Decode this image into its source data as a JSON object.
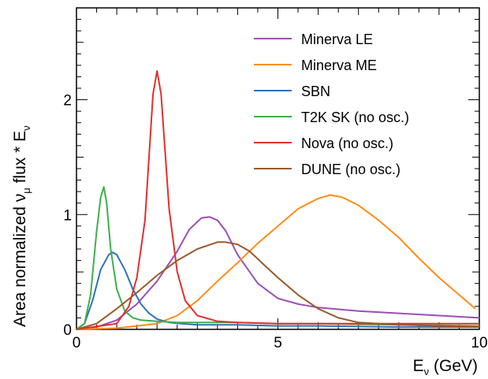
{
  "chart_data": {
    "type": "line",
    "title": "",
    "xlabel": {
      "main": "E",
      "sub": "ν",
      "rest": " (GeV)"
    },
    "ylabel": {
      "pre": "Area normalized  ν",
      "sub": "μ",
      "post": " flux * E",
      "sub2": "ν"
    },
    "xlim": [
      0,
      10
    ],
    "ylim": [
      0,
      2.8
    ],
    "xticks": [
      0,
      5,
      10
    ],
    "xtick_labels": [
      "0",
      "5",
      "10"
    ],
    "yticks": [
      0,
      1,
      2
    ],
    "ytick_labels": [
      "0",
      "1",
      "2"
    ],
    "grid": false,
    "legend_position": "top-right",
    "series": [
      {
        "name": "Minerva LE",
        "color": "#9b4fb5",
        "x": [
          0,
          0.5,
          1.0,
          1.5,
          2.0,
          2.5,
          2.8,
          3.1,
          3.3,
          3.5,
          3.7,
          4.0,
          4.5,
          5.0,
          5.5,
          6.0,
          7.0,
          8.0,
          9.0,
          10.0
        ],
        "y": [
          0,
          0.02,
          0.08,
          0.22,
          0.42,
          0.68,
          0.87,
          0.97,
          0.98,
          0.95,
          0.86,
          0.65,
          0.4,
          0.27,
          0.22,
          0.19,
          0.16,
          0.14,
          0.12,
          0.1
        ]
      },
      {
        "name": "Minerva ME",
        "color": "#ff8c1a",
        "x": [
          0,
          1.0,
          2.0,
          2.5,
          3.0,
          3.5,
          4.0,
          4.5,
          5.0,
          5.5,
          6.0,
          6.3,
          6.6,
          7.0,
          7.5,
          8.0,
          8.5,
          9.0,
          9.5,
          9.9
        ],
        "y": [
          0,
          0.01,
          0.05,
          0.12,
          0.25,
          0.42,
          0.58,
          0.75,
          0.9,
          1.05,
          1.14,
          1.17,
          1.15,
          1.08,
          0.95,
          0.8,
          0.62,
          0.45,
          0.3,
          0.18
        ]
      },
      {
        "name": "SBN",
        "color": "#2f73b8",
        "x": [
          0,
          0.2,
          0.4,
          0.6,
          0.8,
          0.9,
          1.0,
          1.2,
          1.4,
          1.6,
          1.8,
          2.0,
          2.3,
          2.6,
          3.0,
          4.0,
          5.0,
          6.0,
          8.0,
          10.0
        ],
        "y": [
          0,
          0.05,
          0.25,
          0.52,
          0.65,
          0.67,
          0.65,
          0.52,
          0.35,
          0.22,
          0.14,
          0.09,
          0.06,
          0.05,
          0.04,
          0.04,
          0.03,
          0.03,
          0.02,
          0.02
        ]
      },
      {
        "name": "T2K SK (no osc.)",
        "color": "#3db04b",
        "x": [
          0,
          0.2,
          0.35,
          0.5,
          0.6,
          0.68,
          0.75,
          0.85,
          1.0,
          1.2,
          1.4,
          1.6,
          2.0,
          2.5,
          3.0,
          4.0,
          5.0,
          6.0,
          8.0,
          10.0
        ],
        "y": [
          0,
          0.05,
          0.3,
          0.85,
          1.15,
          1.24,
          1.1,
          0.7,
          0.35,
          0.16,
          0.1,
          0.08,
          0.07,
          0.06,
          0.06,
          0.06,
          0.05,
          0.05,
          0.04,
          0.03
        ]
      },
      {
        "name": "Nova (no osc.)",
        "color": "#e52e2e",
        "x": [
          0,
          1.0,
          1.3,
          1.5,
          1.7,
          1.8,
          1.9,
          2.0,
          2.1,
          2.2,
          2.3,
          2.5,
          2.7,
          3.0,
          3.5,
          4.0,
          5.0,
          6.0,
          8.0,
          10.0
        ],
        "y": [
          0,
          0.05,
          0.2,
          0.45,
          0.95,
          1.5,
          2.05,
          2.25,
          2.05,
          1.55,
          1.05,
          0.5,
          0.25,
          0.12,
          0.07,
          0.06,
          0.05,
          0.05,
          0.05,
          0.05
        ]
      },
      {
        "name": "DUNE (no osc.)",
        "color": "#9a5a2a",
        "x": [
          0,
          0.5,
          1.0,
          1.5,
          2.0,
          2.5,
          3.0,
          3.5,
          3.7,
          4.0,
          4.3,
          4.6,
          5.0,
          5.5,
          6.0,
          6.5,
          7.0,
          8.0,
          9.0,
          10.0
        ],
        "y": [
          0,
          0.05,
          0.18,
          0.32,
          0.47,
          0.6,
          0.7,
          0.76,
          0.76,
          0.74,
          0.68,
          0.58,
          0.45,
          0.3,
          0.18,
          0.1,
          0.06,
          0.04,
          0.03,
          0.02
        ]
      }
    ]
  }
}
